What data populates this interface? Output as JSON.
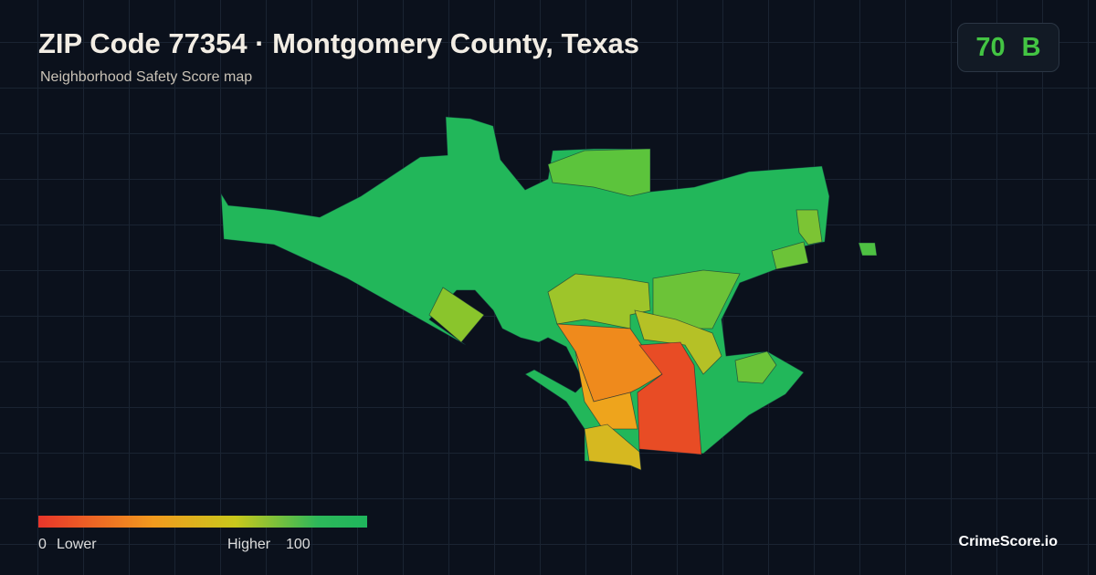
{
  "header": {
    "title": "ZIP Code 77354 · Montgomery County, Texas",
    "subtitle": "Neighborhood Safety Score map"
  },
  "score": {
    "value": "70",
    "grade": "B"
  },
  "legend": {
    "min": "0",
    "min_label": "Lower",
    "max_label": "Higher",
    "max": "100"
  },
  "brand": "CrimeScore.io"
}
